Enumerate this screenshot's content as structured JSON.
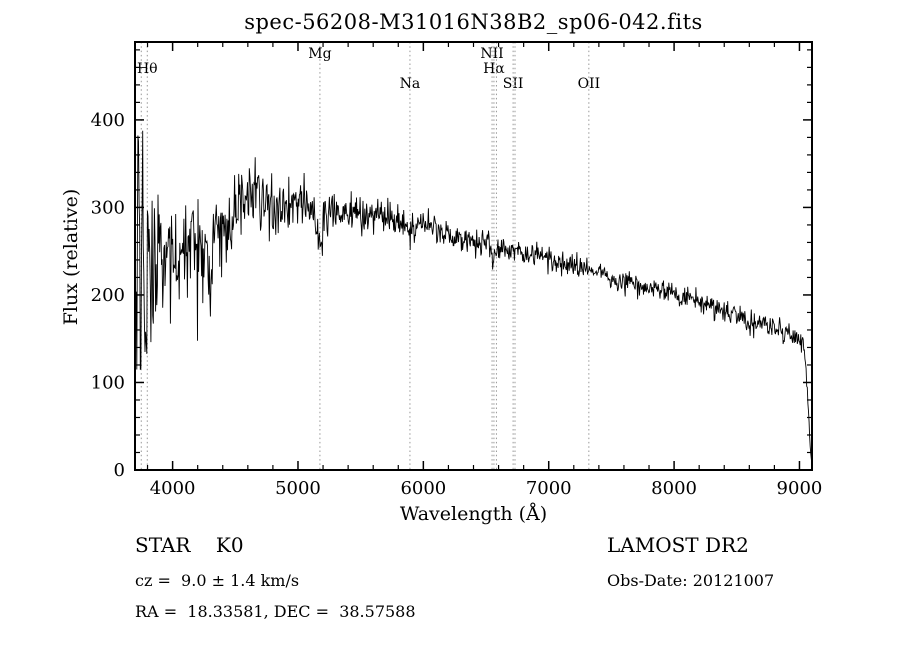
{
  "page": {
    "background": "#ffffff"
  },
  "chart_data": {
    "type": "line",
    "title": "spec-56208-M31016N38B2_sp06-042.fits",
    "xlabel": "Wavelength (Å)",
    "ylabel": "Flux (relative)",
    "xlim": [
      3700,
      9100
    ],
    "ylim": [
      0,
      489
    ],
    "x_major_ticks": [
      4000,
      5000,
      6000,
      7000,
      8000,
      9000
    ],
    "x_minor_step": 200,
    "y_major_ticks": [
      0,
      100,
      200,
      300,
      400
    ],
    "y_minor_step": 20,
    "grid": false,
    "legend_position": "none",
    "line_color": "#000000",
    "axis_color": "#000000",
    "marker_line_color": "#989898",
    "spectral_lines": [
      {
        "label": "Hθ",
        "wavelength": 3798,
        "row": 1
      },
      {
        "label": "",
        "wavelength": 3750,
        "row": 2
      },
      {
        "label": "Mg",
        "wavelength": 5175,
        "row": 0
      },
      {
        "label": "Na",
        "wavelength": 5893,
        "row": 2
      },
      {
        "label": "NII",
        "wavelength": 6548,
        "row": 0
      },
      {
        "label": "Hα",
        "wavelength": 6563,
        "row": 1
      },
      {
        "label": "",
        "wavelength": 6583,
        "row": 0
      },
      {
        "label": "SII",
        "wavelength": 6716,
        "row": 2
      },
      {
        "label": "",
        "wavelength": 6731,
        "row": 0
      },
      {
        "label": "OII",
        "wavelength": 7320,
        "row": 2
      }
    ],
    "series": [
      {
        "name": "spectrum",
        "noise_seed": 11,
        "samples": 1150,
        "continuum_points": [
          [
            3705,
            215
          ],
          [
            3713,
            150
          ],
          [
            3721,
            320
          ],
          [
            3729,
            380
          ],
          [
            3737,
            250
          ],
          [
            3745,
            95
          ],
          [
            3753,
            275
          ],
          [
            3761,
            392
          ],
          [
            3769,
            210
          ],
          [
            3777,
            130
          ],
          [
            3785,
            190
          ],
          [
            3793,
            92
          ],
          [
            3801,
            298
          ],
          [
            3809,
            252
          ],
          [
            3817,
            300
          ],
          [
            3825,
            118
          ],
          [
            3833,
            282
          ],
          [
            3841,
            188
          ],
          [
            3849,
            242
          ],
          [
            3857,
            300
          ],
          [
            3865,
            225
          ],
          [
            3873,
            195
          ],
          [
            3881,
            262
          ],
          [
            3889,
            300
          ],
          [
            3897,
            235
          ],
          [
            3910,
            278
          ],
          [
            3925,
            212
          ],
          [
            3940,
            262
          ],
          [
            3955,
            238
          ],
          [
            3970,
            258
          ],
          [
            3985,
            242
          ],
          [
            4000,
            255
          ],
          [
            4030,
            262
          ],
          [
            4060,
            242
          ],
          [
            4090,
            272
          ],
          [
            4120,
            258
          ],
          [
            4150,
            282
          ],
          [
            4180,
            268
          ],
          [
            4210,
            275
          ],
          [
            4240,
            250
          ],
          [
            4270,
            262
          ],
          [
            4300,
            208
          ],
          [
            4330,
            268
          ],
          [
            4360,
            282
          ],
          [
            4390,
            272
          ],
          [
            4420,
            288
          ],
          [
            4450,
            278
          ],
          [
            4480,
            292
          ],
          [
            4510,
            298
          ],
          [
            4540,
            308
          ],
          [
            4570,
            300
          ],
          [
            4600,
            315
          ],
          [
            4630,
            322
          ],
          [
            4660,
            328
          ],
          [
            4690,
            318
          ],
          [
            4720,
            314
          ],
          [
            4750,
            308
          ],
          [
            4780,
            302
          ],
          [
            4810,
            298
          ],
          [
            4840,
            290
          ],
          [
            4870,
            300
          ],
          [
            4900,
            306
          ],
          [
            4930,
            300
          ],
          [
            4960,
            304
          ],
          [
            5000,
            300
          ],
          [
            5040,
            306
          ],
          [
            5080,
            300
          ],
          [
            5120,
            296
          ],
          [
            5175,
            262
          ],
          [
            5220,
            294
          ],
          [
            5270,
            297
          ],
          [
            5320,
            293
          ],
          [
            5380,
            296
          ],
          [
            5440,
            293
          ],
          [
            5500,
            294
          ],
          [
            5560,
            290
          ],
          [
            5620,
            291
          ],
          [
            5680,
            290
          ],
          [
            5740,
            288
          ],
          [
            5800,
            286
          ],
          [
            5850,
            282
          ],
          [
            5893,
            264
          ],
          [
            5940,
            283
          ],
          [
            6000,
            281
          ],
          [
            6060,
            277
          ],
          [
            6120,
            274
          ],
          [
            6180,
            271
          ],
          [
            6240,
            268
          ],
          [
            6300,
            266
          ],
          [
            6360,
            264
          ],
          [
            6420,
            262
          ],
          [
            6480,
            260
          ],
          [
            6530,
            256
          ],
          [
            6563,
            238
          ],
          [
            6610,
            255
          ],
          [
            6670,
            252
          ],
          [
            6730,
            250
          ],
          [
            6800,
            248
          ],
          [
            6870,
            246
          ],
          [
            6940,
            244
          ],
          [
            7000,
            242
          ],
          [
            7080,
            238
          ],
          [
            7160,
            234
          ],
          [
            7240,
            231
          ],
          [
            7320,
            228
          ],
          [
            7400,
            225
          ],
          [
            7480,
            221
          ],
          [
            7560,
            216
          ],
          [
            7640,
            214
          ],
          [
            7720,
            212
          ],
          [
            7800,
            209
          ],
          [
            7880,
            206
          ],
          [
            7960,
            203
          ],
          [
            8040,
            199
          ],
          [
            8120,
            195
          ],
          [
            8200,
            191
          ],
          [
            8280,
            187
          ],
          [
            8360,
            183
          ],
          [
            8440,
            179
          ],
          [
            8520,
            175
          ],
          [
            8600,
            170
          ],
          [
            8680,
            167
          ],
          [
            8760,
            163
          ],
          [
            8840,
            160
          ],
          [
            8920,
            156
          ],
          [
            8990,
            151
          ],
          [
            9030,
            143
          ],
          [
            9055,
            112
          ],
          [
            9075,
            55
          ],
          [
            9095,
            10
          ]
        ],
        "noise_sigma_points": [
          [
            3705,
            35
          ],
          [
            3900,
            32
          ],
          [
            4000,
            28
          ],
          [
            4200,
            24
          ],
          [
            4400,
            21
          ],
          [
            4700,
            17
          ],
          [
            5000,
            13
          ],
          [
            5300,
            11
          ],
          [
            5600,
            10
          ],
          [
            6000,
            9
          ],
          [
            6400,
            8
          ],
          [
            6800,
            7
          ],
          [
            7200,
            6
          ],
          [
            7600,
            5.5
          ],
          [
            8000,
            6
          ],
          [
            8600,
            6.5
          ],
          [
            9000,
            6
          ],
          [
            9060,
            4
          ],
          [
            9095,
            2
          ]
        ]
      }
    ]
  },
  "annotations": {
    "object_type": "STAR    K0",
    "survey": "LAMOST DR2",
    "cz": "cz =  9.0 ± 1.4 km/s",
    "obs_date": "Obs-Date: 20121007",
    "coords": "RA =  18.33581, DEC =  38.57588"
  }
}
